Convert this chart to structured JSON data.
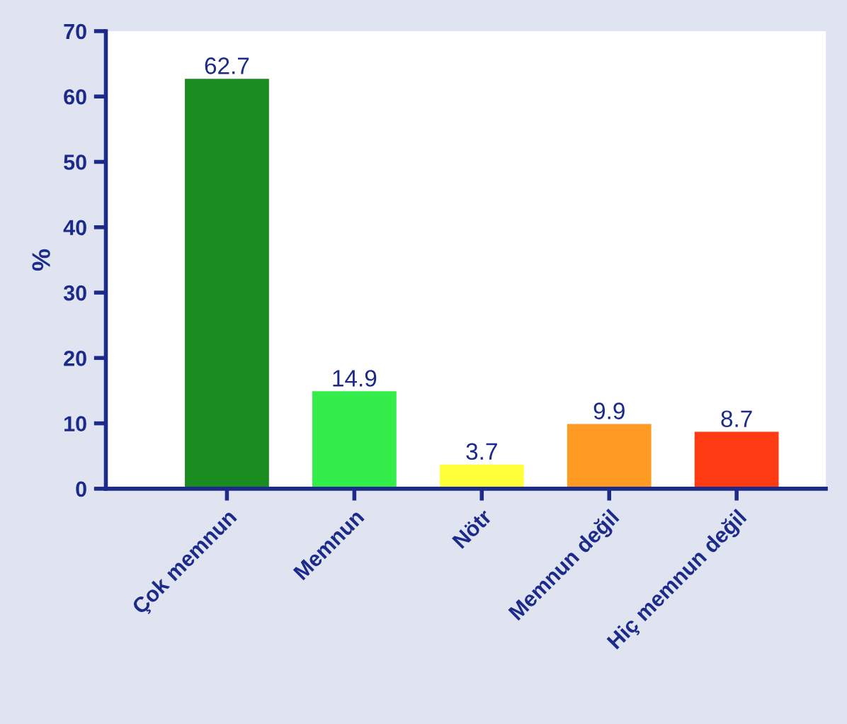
{
  "chart_data": {
    "type": "bar",
    "ylabel": "%",
    "categories": [
      "Çok memnun",
      "Memnun",
      "Nötr",
      "Memnun değil",
      "Hiç memnun değil"
    ],
    "values": [
      62.7,
      14.9,
      3.7,
      9.9,
      8.7
    ],
    "colors": [
      "#1a8c1f",
      "#33ee4a",
      "#ffff3a",
      "#ff9a22",
      "#ff3b14"
    ],
    "ylim": [
      0,
      70
    ],
    "yticks": [
      0,
      10,
      20,
      30,
      40,
      50,
      60,
      70
    ],
    "data_labels": true,
    "grid": false,
    "legend": false
  }
}
